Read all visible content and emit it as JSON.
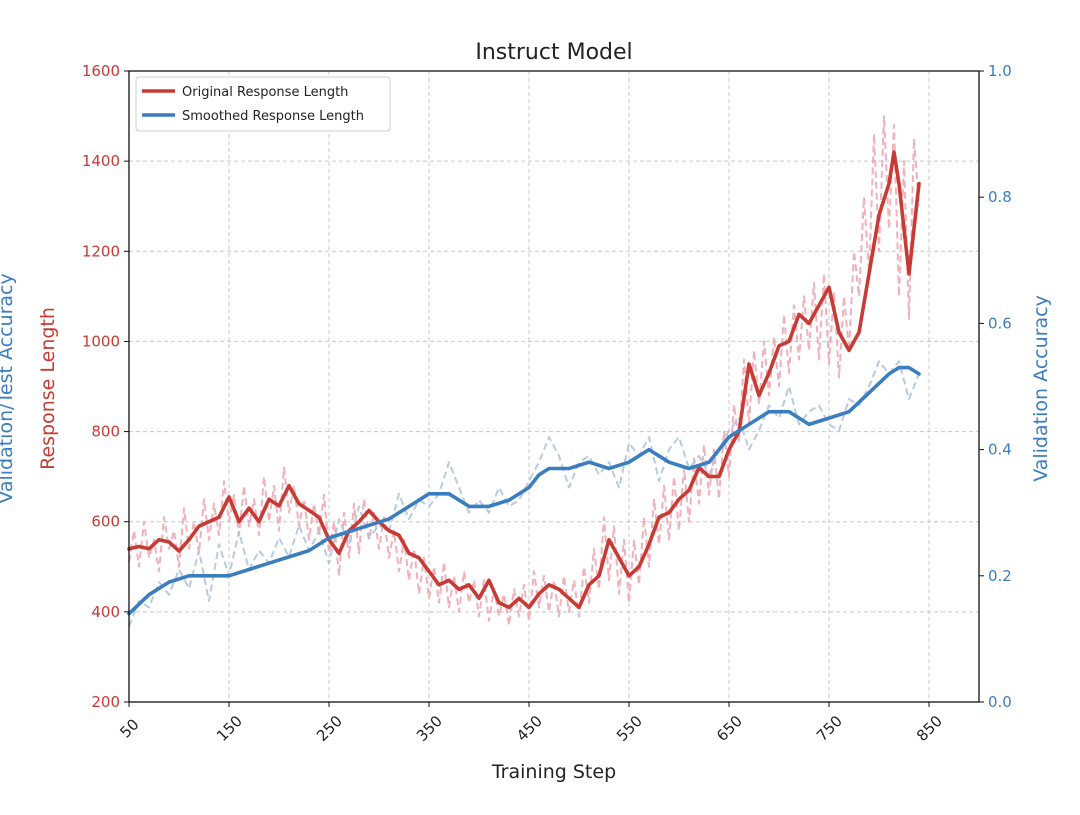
{
  "colors": {
    "response": "#c83a34",
    "response_raw": "#f0a8b4",
    "accuracy": "#3a7ebf",
    "accuracy_raw": "#b0c4dc",
    "grid": "#c8c8c8"
  },
  "chart_data": {
    "type": "line",
    "title": "Instruct Model",
    "xlabel": "Training Step",
    "ylabel_left": "Response Length",
    "ylabel_left_outer": "Validation/Test Accuracy",
    "ylabel_right": "Validation Accuracy",
    "xlim": [
      50,
      900
    ],
    "ylim_left": [
      200,
      1600
    ],
    "ylim_right": [
      0.0,
      1.0
    ],
    "x_ticks": [
      50,
      150,
      250,
      350,
      450,
      550,
      650,
      750,
      850
    ],
    "x_tick_labels": [
      "50",
      "150",
      "250",
      "350",
      "450",
      "550",
      "650",
      "750",
      "850"
    ],
    "y_left_ticks": [
      200,
      400,
      600,
      800,
      1000,
      1200,
      1400,
      1600
    ],
    "y_left_tick_labels": [
      "200",
      "400",
      "600",
      "800",
      "1000",
      "1200",
      "1400",
      "1600"
    ],
    "y_right_ticks": [
      0.0,
      0.2,
      0.4,
      0.6,
      0.8,
      1.0
    ],
    "y_right_tick_labels": [
      "0.0",
      "0.2",
      "0.4",
      "0.6",
      "0.8",
      "1.0"
    ],
    "grid": true,
    "legend_position": "top-left",
    "legend": [
      {
        "label": "Original Response Length",
        "color_key": "response"
      },
      {
        "label": "Smoothed Response Length",
        "color_key": "accuracy"
      }
    ],
    "series": [
      {
        "name": "Original Response Length",
        "axis": "left",
        "x": [
          50,
          60,
          70,
          80,
          90,
          100,
          110,
          120,
          130,
          140,
          150,
          160,
          170,
          180,
          190,
          200,
          210,
          220,
          230,
          240,
          250,
          260,
          270,
          280,
          290,
          300,
          310,
          320,
          330,
          340,
          350,
          360,
          370,
          380,
          390,
          400,
          410,
          420,
          430,
          440,
          450,
          460,
          470,
          480,
          490,
          500,
          510,
          520,
          530,
          540,
          550,
          560,
          570,
          580,
          590,
          600,
          610,
          620,
          630,
          640,
          650,
          660,
          670,
          680,
          690,
          700,
          710,
          720,
          730,
          740,
          750,
          760,
          770,
          780,
          790,
          800,
          810,
          815,
          820,
          830,
          840
        ],
        "values": [
          540,
          545,
          540,
          560,
          555,
          535,
          560,
          590,
          600,
          610,
          655,
          600,
          630,
          600,
          650,
          635,
          680,
          640,
          625,
          610,
          560,
          530,
          580,
          600,
          625,
          600,
          580,
          570,
          530,
          520,
          490,
          460,
          470,
          450,
          460,
          430,
          470,
          420,
          410,
          430,
          410,
          440,
          460,
          450,
          430,
          410,
          460,
          480,
          560,
          520,
          480,
          500,
          550,
          610,
          620,
          650,
          670,
          720,
          700,
          700,
          760,
          800,
          950,
          880,
          930,
          990,
          1000,
          1060,
          1040,
          1080,
          1120,
          1020,
          980,
          1020,
          1150,
          1280,
          1350,
          1420,
          1350,
          1150,
          1350
        ]
      },
      {
        "name": "Smoothed Response Length",
        "axis": "right",
        "x": [
          50,
          70,
          90,
          110,
          130,
          150,
          170,
          190,
          210,
          230,
          250,
          270,
          290,
          310,
          330,
          350,
          370,
          390,
          410,
          430,
          450,
          460,
          470,
          490,
          510,
          530,
          550,
          570,
          590,
          610,
          630,
          650,
          670,
          690,
          710,
          730,
          750,
          770,
          790,
          810,
          820,
          830,
          840
        ],
        "values": [
          0.14,
          0.17,
          0.19,
          0.2,
          0.2,
          0.2,
          0.21,
          0.22,
          0.23,
          0.24,
          0.26,
          0.27,
          0.28,
          0.29,
          0.31,
          0.33,
          0.33,
          0.31,
          0.31,
          0.32,
          0.34,
          0.36,
          0.37,
          0.37,
          0.38,
          0.37,
          0.38,
          0.4,
          0.38,
          0.37,
          0.38,
          0.42,
          0.44,
          0.46,
          0.46,
          0.44,
          0.45,
          0.46,
          0.49,
          0.52,
          0.53,
          0.53,
          0.52
        ]
      },
      {
        "name": "",
        "axis": "left",
        "style": "raw-dashed",
        "x": [
          50,
          55,
          60,
          65,
          70,
          75,
          80,
          85,
          90,
          95,
          100,
          105,
          110,
          115,
          120,
          125,
          130,
          135,
          140,
          145,
          150,
          155,
          160,
          165,
          170,
          175,
          180,
          185,
          190,
          195,
          200,
          205,
          210,
          215,
          220,
          225,
          230,
          235,
          240,
          245,
          250,
          255,
          260,
          265,
          270,
          275,
          280,
          285,
          290,
          295,
          300,
          305,
          310,
          315,
          320,
          325,
          330,
          335,
          340,
          345,
          350,
          355,
          360,
          365,
          370,
          375,
          380,
          385,
          390,
          395,
          400,
          405,
          410,
          415,
          420,
          425,
          430,
          435,
          440,
          445,
          450,
          455,
          460,
          465,
          470,
          475,
          480,
          485,
          490,
          495,
          500,
          505,
          510,
          515,
          520,
          525,
          530,
          535,
          540,
          545,
          550,
          555,
          560,
          565,
          570,
          575,
          580,
          585,
          590,
          595,
          600,
          605,
          610,
          615,
          620,
          625,
          630,
          635,
          640,
          645,
          650,
          655,
          660,
          665,
          670,
          675,
          680,
          685,
          690,
          695,
          700,
          705,
          710,
          715,
          720,
          725,
          730,
          735,
          740,
          745,
          750,
          755,
          760,
          765,
          770,
          775,
          780,
          785,
          790,
          795,
          800,
          805,
          810,
          815,
          820,
          825,
          830,
          835,
          840
        ],
        "values": [
          510,
          580,
          500,
          600,
          520,
          560,
          490,
          610,
          540,
          580,
          500,
          630,
          540,
          600,
          530,
          650,
          560,
          640,
          570,
          690,
          600,
          660,
          570,
          680,
          590,
          650,
          570,
          700,
          600,
          680,
          580,
          720,
          620,
          680,
          590,
          650,
          560,
          640,
          570,
          660,
          530,
          600,
          480,
          620,
          520,
          640,
          530,
          650,
          560,
          620,
          540,
          610,
          520,
          580,
          490,
          560,
          470,
          540,
          440,
          520,
          430,
          500,
          420,
          510,
          410,
          480,
          400,
          490,
          420,
          470,
          390,
          470,
          380,
          450,
          390,
          440,
          370,
          450,
          390,
          460,
          380,
          490,
          410,
          480,
          400,
          470,
          390,
          480,
          400,
          470,
          390,
          500,
          420,
          540,
          450,
          610,
          470,
          590,
          440,
          560,
          420,
          560,
          460,
          610,
          500,
          650,
          550,
          680,
          560,
          700,
          580,
          720,
          600,
          740,
          640,
          770,
          660,
          760,
          650,
          800,
          700,
          860,
          780,
          960,
          820,
          980,
          860,
          1000,
          880,
          1010,
          900,
          1060,
          930,
          1080,
          960,
          1100,
          980,
          1130,
          960,
          1150,
          950,
          1110,
          920,
          1100,
          980,
          1200,
          1100,
          1320,
          1150,
          1460,
          1200,
          1500,
          1250,
          1480,
          1100,
          1400,
          1050,
          1450,
          1300
        ]
      },
      {
        "name": "",
        "axis": "right",
        "style": "raw-dashed",
        "x": [
          50,
          60,
          70,
          80,
          90,
          100,
          110,
          120,
          130,
          140,
          150,
          160,
          170,
          180,
          190,
          200,
          210,
          220,
          230,
          240,
          250,
          260,
          270,
          280,
          290,
          300,
          310,
          320,
          330,
          340,
          350,
          360,
          370,
          380,
          390,
          400,
          410,
          420,
          430,
          440,
          450,
          460,
          470,
          480,
          490,
          500,
          510,
          520,
          530,
          540,
          550,
          560,
          570,
          580,
          590,
          600,
          610,
          620,
          630,
          640,
          650,
          660,
          670,
          680,
          690,
          700,
          710,
          720,
          730,
          740,
          750,
          760,
          770,
          780,
          790,
          800,
          810,
          820,
          830,
          840
        ],
        "values": [
          0.12,
          0.16,
          0.15,
          0.19,
          0.17,
          0.21,
          0.18,
          0.24,
          0.16,
          0.25,
          0.2,
          0.27,
          0.21,
          0.24,
          0.22,
          0.26,
          0.23,
          0.28,
          0.24,
          0.27,
          0.22,
          0.29,
          0.25,
          0.31,
          0.26,
          0.28,
          0.27,
          0.33,
          0.29,
          0.32,
          0.31,
          0.33,
          0.38,
          0.34,
          0.3,
          0.32,
          0.3,
          0.34,
          0.31,
          0.32,
          0.35,
          0.38,
          0.42,
          0.39,
          0.34,
          0.38,
          0.39,
          0.36,
          0.38,
          0.34,
          0.41,
          0.39,
          0.42,
          0.35,
          0.4,
          0.42,
          0.37,
          0.39,
          0.36,
          0.4,
          0.43,
          0.45,
          0.4,
          0.43,
          0.47,
          0.45,
          0.5,
          0.44,
          0.46,
          0.47,
          0.44,
          0.43,
          0.48,
          0.47,
          0.5,
          0.54,
          0.52,
          0.54,
          0.48,
          0.52
        ]
      }
    ]
  }
}
